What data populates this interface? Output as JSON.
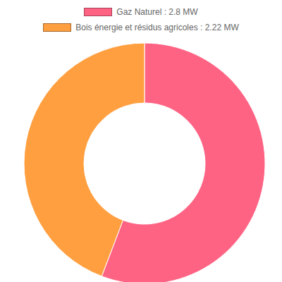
{
  "chart_data": {
    "type": "pie",
    "categories": [
      "Gaz Naturel : 2.8 MW",
      "Bois énergie et résidus agricoles : 2.22 MW"
    ],
    "values": [
      2.8,
      2.22
    ],
    "colors": [
      "#ff6384",
      "#ff9f40"
    ],
    "legend": "top"
  }
}
